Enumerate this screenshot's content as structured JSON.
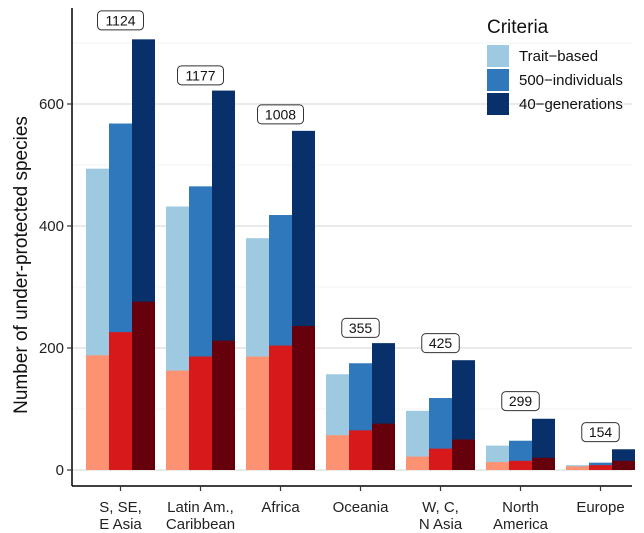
{
  "chart_data": {
    "type": "bar",
    "ylabel": "Number of under-protected species",
    "xlabel": "",
    "ylim": [
      -10,
      755
    ],
    "yticks": [
      0,
      200,
      400,
      600
    ],
    "grid": "horizontal",
    "legend": {
      "title": "Criteria",
      "placement": "top-right"
    },
    "categories": [
      [
        "S, SE,",
        "E Asia"
      ],
      [
        "Latin Am.,",
        "Caribbean"
      ],
      [
        "Africa"
      ],
      [
        "Oceania"
      ],
      [
        "W, C,",
        "N Asia"
      ],
      [
        "North",
        "America"
      ],
      [
        "Europe"
      ]
    ],
    "totals": [
      "1124",
      "1177",
      "1008",
      "355",
      "425",
      "299",
      "154"
    ],
    "total_label_levels": [
      737,
      647,
      583,
      233,
      208,
      113,
      62
    ],
    "series": [
      {
        "name": "Trait−based",
        "color": "#9ecae1",
        "dark_color": "#fc9272",
        "values": [
          494,
          432,
          380,
          157,
          97,
          40,
          8
        ],
        "highlighted": [
          188,
          163,
          186,
          57,
          22,
          13,
          6
        ]
      },
      {
        "name": "500−individuals",
        "color": "#2f78bb",
        "dark_color": "#d7191c",
        "values": [
          568,
          465,
          418,
          175,
          118,
          48,
          12
        ],
        "highlighted": [
          226,
          186,
          204,
          65,
          35,
          15,
          8
        ]
      },
      {
        "name": "40−generations",
        "color": "#08306b",
        "dark_color": "#67000d",
        "values": [
          706,
          622,
          556,
          208,
          180,
          84,
          34
        ],
        "highlighted": [
          276,
          212,
          236,
          76,
          50,
          20,
          15
        ]
      }
    ]
  }
}
